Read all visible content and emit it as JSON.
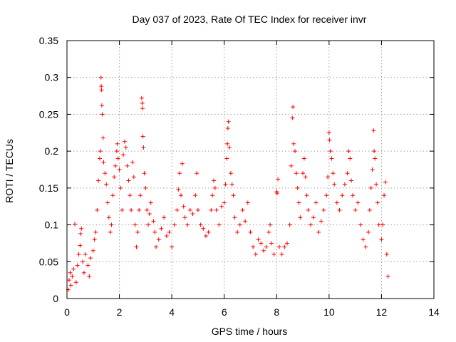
{
  "chart_data": {
    "type": "scatter",
    "title": "Day 037 of 2023, Rate Of TEC Index for receiver invr",
    "xlabel": "GPS time / hours",
    "ylabel": "ROTI / TECUs",
    "xlim": [
      0,
      14
    ],
    "ylim": [
      0,
      0.35
    ],
    "xticks": [
      0,
      2,
      4,
      6,
      8,
      10,
      12,
      14
    ],
    "xtick_labels": [
      "0",
      "2",
      "4",
      "6",
      "8",
      "10",
      "12",
      "14"
    ],
    "yticks": [
      0,
      0.05,
      0.1,
      0.15,
      0.2,
      0.25,
      0.3,
      0.35
    ],
    "ytick_labels": [
      "0",
      "0.05",
      "0.1",
      "0.15",
      "0.2",
      "0.25",
      "0.3",
      "0.35"
    ],
    "grid": true,
    "marker": "+",
    "color": "#ff0000",
    "series": [
      {
        "name": "ROTI",
        "points": [
          [
            0.05,
            0.012
          ],
          [
            0.08,
            0.025
          ],
          [
            0.12,
            0.035
          ],
          [
            0.15,
            0.018
          ],
          [
            0.2,
            0.03
          ],
          [
            0.25,
            0.04
          ],
          [
            0.3,
            0.101
          ],
          [
            0.35,
            0.022
          ],
          [
            0.4,
            0.045
          ],
          [
            0.45,
            0.06
          ],
          [
            0.5,
            0.072
          ],
          [
            0.52,
            0.088
          ],
          [
            0.55,
            0.095
          ],
          [
            0.6,
            0.05
          ],
          [
            0.65,
            0.035
          ],
          [
            0.7,
            0.06
          ],
          [
            0.8,
            0.045
          ],
          [
            0.85,
            0.03
          ],
          [
            0.9,
            0.055
          ],
          [
            1.0,
            0.065
          ],
          [
            1.05,
            0.08
          ],
          [
            1.1,
            0.09
          ],
          [
            1.15,
            0.12
          ],
          [
            1.2,
            0.16
          ],
          [
            1.25,
            0.19
          ],
          [
            1.27,
            0.2
          ],
          [
            1.3,
            0.3
          ],
          [
            1.31,
            0.288
          ],
          [
            1.32,
            0.283
          ],
          [
            1.33,
            0.262
          ],
          [
            1.35,
            0.25
          ],
          [
            1.38,
            0.218
          ],
          [
            1.4,
            0.185
          ],
          [
            1.45,
            0.17
          ],
          [
            1.5,
            0.155
          ],
          [
            1.55,
            0.13
          ],
          [
            1.6,
            0.11
          ],
          [
            1.65,
            0.09
          ],
          [
            1.7,
            0.1
          ],
          [
            1.75,
            0.14
          ],
          [
            1.8,
            0.165
          ],
          [
            1.85,
            0.18
          ],
          [
            1.9,
            0.2
          ],
          [
            1.92,
            0.21
          ],
          [
            1.95,
            0.19
          ],
          [
            2.0,
            0.175
          ],
          [
            2.05,
            0.15
          ],
          [
            2.1,
            0.12
          ],
          [
            2.15,
            0.195
          ],
          [
            2.2,
            0.213
          ],
          [
            2.25,
            0.205
          ],
          [
            2.3,
            0.18
          ],
          [
            2.35,
            0.16
          ],
          [
            2.4,
            0.14
          ],
          [
            2.45,
            0.12
          ],
          [
            2.5,
            0.185
          ],
          [
            2.55,
            0.165
          ],
          [
            2.6,
            0.1
          ],
          [
            2.65,
            0.07
          ],
          [
            2.7,
            0.09
          ],
          [
            2.75,
            0.12
          ],
          [
            2.8,
            0.14
          ],
          [
            2.85,
            0.272
          ],
          [
            2.87,
            0.265
          ],
          [
            2.88,
            0.258
          ],
          [
            2.9,
            0.22
          ],
          [
            2.92,
            0.205
          ],
          [
            2.95,
            0.17
          ],
          [
            3.0,
            0.15
          ],
          [
            3.05,
            0.12
          ],
          [
            3.1,
            0.1
          ],
          [
            3.15,
            0.115
          ],
          [
            3.2,
            0.13
          ],
          [
            3.3,
            0.105
          ],
          [
            3.35,
            0.09
          ],
          [
            3.4,
            0.07
          ],
          [
            3.5,
            0.08
          ],
          [
            3.6,
            0.095
          ],
          [
            3.7,
            0.11
          ],
          [
            3.8,
            0.085
          ],
          [
            3.9,
            0.09
          ],
          [
            4.0,
            0.07
          ],
          [
            4.1,
            0.1
          ],
          [
            4.2,
            0.12
          ],
          [
            4.25,
            0.148
          ],
          [
            4.3,
            0.17
          ],
          [
            4.35,
            0.14
          ],
          [
            4.4,
            0.183
          ],
          [
            4.45,
            0.125
          ],
          [
            4.5,
            0.11
          ],
          [
            4.6,
            0.1
          ],
          [
            4.7,
            0.12
          ],
          [
            4.8,
            0.115
          ],
          [
            4.9,
            0.14
          ],
          [
            4.95,
            0.17
          ],
          [
            5.0,
            0.12
          ],
          [
            5.1,
            0.1
          ],
          [
            5.2,
            0.095
          ],
          [
            5.3,
            0.085
          ],
          [
            5.4,
            0.09
          ],
          [
            5.5,
            0.12
          ],
          [
            5.55,
            0.14
          ],
          [
            5.6,
            0.16
          ],
          [
            5.65,
            0.15
          ],
          [
            5.7,
            0.12
          ],
          [
            5.8,
            0.1
          ],
          [
            5.9,
            0.125
          ],
          [
            6.0,
            0.13
          ],
          [
            6.05,
            0.155
          ],
          [
            6.1,
            0.19
          ],
          [
            6.12,
            0.21
          ],
          [
            6.14,
            0.231
          ],
          [
            6.16,
            0.24
          ],
          [
            6.2,
            0.205
          ],
          [
            6.25,
            0.17
          ],
          [
            6.3,
            0.155
          ],
          [
            6.35,
            0.14
          ],
          [
            6.4,
            0.11
          ],
          [
            6.5,
            0.09
          ],
          [
            6.6,
            0.1
          ],
          [
            6.7,
            0.12
          ],
          [
            6.8,
            0.105
          ],
          [
            6.9,
            0.13
          ],
          [
            7.0,
            0.09
          ],
          [
            7.1,
            0.07
          ],
          [
            7.2,
            0.06
          ],
          [
            7.3,
            0.08
          ],
          [
            7.4,
            0.075
          ],
          [
            7.5,
            0.065
          ],
          [
            7.6,
            0.07
          ],
          [
            7.7,
            0.09
          ],
          [
            7.75,
            0.1
          ],
          [
            7.8,
            0.075
          ],
          [
            7.9,
            0.06
          ],
          [
            8.0,
            0.145
          ],
          [
            8.02,
            0.143
          ],
          [
            8.05,
            0.162
          ],
          [
            8.1,
            0.07
          ],
          [
            8.2,
            0.06
          ],
          [
            8.3,
            0.07
          ],
          [
            8.4,
            0.075
          ],
          [
            8.5,
            0.1
          ],
          [
            8.55,
            0.18
          ],
          [
            8.6,
            0.245
          ],
          [
            8.62,
            0.26
          ],
          [
            8.65,
            0.21
          ],
          [
            8.7,
            0.2
          ],
          [
            8.75,
            0.17
          ],
          [
            8.8,
            0.15
          ],
          [
            8.85,
            0.13
          ],
          [
            8.9,
            0.11
          ],
          [
            9.0,
            0.17
          ],
          [
            9.05,
            0.19
          ],
          [
            9.1,
            0.165
          ],
          [
            9.15,
            0.14
          ],
          [
            9.2,
            0.12
          ],
          [
            9.3,
            0.1
          ],
          [
            9.4,
            0.11
          ],
          [
            9.5,
            0.13
          ],
          [
            9.6,
            0.09
          ],
          [
            9.7,
            0.105
          ],
          [
            9.8,
            0.12
          ],
          [
            9.9,
            0.14
          ],
          [
            9.95,
            0.165
          ],
          [
            10.0,
            0.225
          ],
          [
            10.02,
            0.215
          ],
          [
            10.05,
            0.2
          ],
          [
            10.1,
            0.19
          ],
          [
            10.15,
            0.17
          ],
          [
            10.2,
            0.155
          ],
          [
            10.3,
            0.13
          ],
          [
            10.4,
            0.12
          ],
          [
            10.5,
            0.14
          ],
          [
            10.6,
            0.155
          ],
          [
            10.7,
            0.17
          ],
          [
            10.75,
            0.2
          ],
          [
            10.8,
            0.19
          ],
          [
            10.85,
            0.16
          ],
          [
            10.9,
            0.14
          ],
          [
            11.0,
            0.12
          ],
          [
            11.1,
            0.13
          ],
          [
            11.2,
            0.1
          ],
          [
            11.3,
            0.08
          ],
          [
            11.4,
            0.07
          ],
          [
            11.5,
            0.09
          ],
          [
            11.55,
            0.12
          ],
          [
            11.6,
            0.15
          ],
          [
            11.65,
            0.175
          ],
          [
            11.7,
            0.228
          ],
          [
            11.72,
            0.2
          ],
          [
            11.75,
            0.19
          ],
          [
            11.8,
            0.155
          ],
          [
            11.85,
            0.13
          ],
          [
            11.9,
            0.1
          ],
          [
            12.0,
            0.08
          ],
          [
            12.05,
            0.1
          ],
          [
            12.1,
            0.14
          ],
          [
            12.15,
            0.158
          ],
          [
            12.2,
            0.06
          ],
          [
            12.25,
            0.03
          ]
        ]
      }
    ]
  }
}
